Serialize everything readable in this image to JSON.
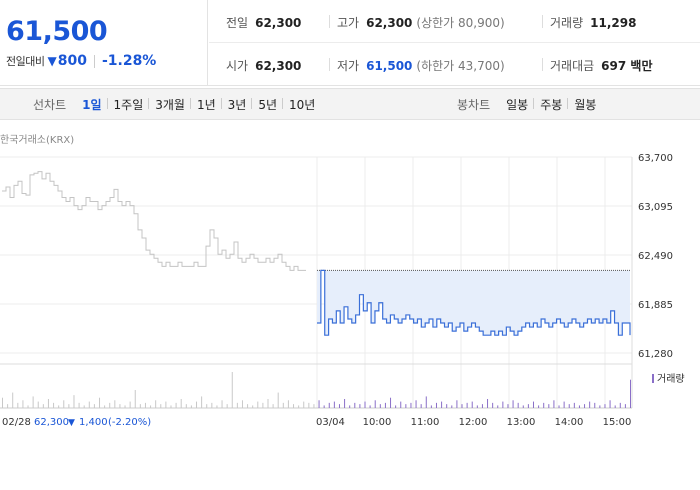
{
  "summary": {
    "price": "61,500",
    "change_label": "전일대비",
    "change_arrow": "▼",
    "change_value": "800",
    "change_pct": "-1.28%",
    "stats": {
      "prev_close": {
        "label": "전일",
        "value": "62,300"
      },
      "high": {
        "label": "고가",
        "value": "62,300",
        "note": "(상한가 80,900)"
      },
      "volume": {
        "label": "거래량",
        "value": "11,298"
      },
      "open": {
        "label": "시가",
        "value": "62,300"
      },
      "low": {
        "label": "저가",
        "value": "61,500",
        "note": "(하한가 43,700)"
      },
      "trade_value": {
        "label": "거래대금",
        "value": "697 백만"
      }
    }
  },
  "toolbar": {
    "line_title": "선차트",
    "periods": [
      "1일",
      "1주일",
      "3개월",
      "1년",
      "3년",
      "5년",
      "10년"
    ],
    "active_period": "1일",
    "candle_title": "봉차트",
    "candles": [
      "일봉",
      "주봉",
      "월봉"
    ]
  },
  "chart": {
    "source": "한국거래소(KRX)",
    "volume_legend": "거래량",
    "prev_info": {
      "date": "02/28",
      "price": "62,300",
      "arrow": "▼",
      "change": "1,400",
      "pct": "(-2.20%)"
    },
    "colors": {
      "today": "#3a6fd8",
      "prev": "#c4c4c4",
      "fill": "#e6eefb",
      "up_label": "#1a56d6"
    }
  },
  "chart_data": {
    "type": "line",
    "y_ticks": [
      "63,700",
      "63,095",
      "62,490",
      "61,885",
      "61,280"
    ],
    "ylim": [
      61280,
      63700
    ],
    "x_ticks": [
      "03/04",
      "10:00",
      "11:00",
      "12:00",
      "13:00",
      "14:00",
      "15:00"
    ],
    "grid": true,
    "reference_line": 62300,
    "series": [
      {
        "values": [
          63280,
          63330,
          63200,
          63350,
          63400,
          63250,
          63230,
          63480,
          63500,
          63520,
          63430,
          63500,
          63400,
          63350,
          63280,
          63200,
          63150,
          63200,
          63100,
          63050,
          63100,
          63200,
          63150,
          63150,
          63050,
          63100,
          63150,
          63200,
          63300,
          63150,
          63100,
          63150,
          63100,
          63000,
          62800,
          62700,
          62550,
          62500,
          62450,
          62400,
          62350,
          62400,
          62350,
          62350,
          62400,
          62350,
          62350,
          62350,
          62400,
          62350,
          62350,
          62600,
          62800,
          62700,
          62500,
          62550,
          62450,
          62500,
          62650,
          62450,
          62400,
          62450,
          62500,
          62450,
          62400,
          62400,
          62450,
          62400,
          62450,
          62500,
          62400,
          62350,
          62300,
          62350,
          62300,
          62300,
          62300
        ]
      },
      {
        "values": [
          61650,
          62300,
          61500,
          61700,
          61650,
          61800,
          61650,
          61850,
          61700,
          61650,
          61750,
          62000,
          61800,
          61900,
          61650,
          61800,
          61900,
          61700,
          61650,
          61750,
          61700,
          61650,
          61700,
          61750,
          61700,
          61650,
          61700,
          61600,
          61650,
          61700,
          61600,
          61700,
          61650,
          61600,
          61650,
          61550,
          61600,
          61650,
          61550,
          61600,
          61650,
          61600,
          61550,
          61500,
          61500,
          61550,
          61500,
          61550,
          61500,
          61600,
          61550,
          61500,
          61550,
          61600,
          61650,
          61600,
          61650,
          61600,
          61700,
          61650,
          61600,
          61650,
          61700,
          61650,
          61600,
          61650,
          61700,
          61650,
          61600,
          61650,
          61700,
          61650,
          61700,
          61650,
          61700,
          61650,
          61800,
          61650,
          61500,
          61650,
          61650,
          61500
        ]
      }
    ],
    "volumes": [
      8,
      3,
      12,
      4,
      6,
      2,
      9,
      5,
      3,
      7,
      4,
      2,
      6,
      3,
      10,
      4,
      2,
      5,
      3,
      8,
      2,
      4,
      6,
      3,
      2,
      5,
      14,
      3,
      4,
      2,
      6,
      3,
      5,
      2,
      4,
      7,
      3,
      2,
      5,
      9,
      3,
      4,
      2,
      6,
      3,
      28,
      4,
      6,
      3,
      2,
      5,
      4,
      7,
      3,
      12,
      4,
      6,
      3,
      2,
      5,
      4,
      3,
      6,
      2,
      4,
      5,
      3,
      7,
      2,
      4,
      3,
      5,
      2,
      6,
      3,
      4,
      8,
      2,
      5,
      3,
      4,
      6,
      3,
      9,
      2,
      4,
      5,
      3,
      2,
      6,
      3,
      4,
      5,
      2,
      3,
      7,
      4,
      2,
      5,
      3,
      6,
      4,
      2,
      3,
      5,
      2,
      4,
      3,
      6,
      2,
      5,
      3,
      4,
      2,
      3,
      5,
      4,
      2,
      3,
      6,
      2,
      4,
      3,
      22
    ]
  }
}
